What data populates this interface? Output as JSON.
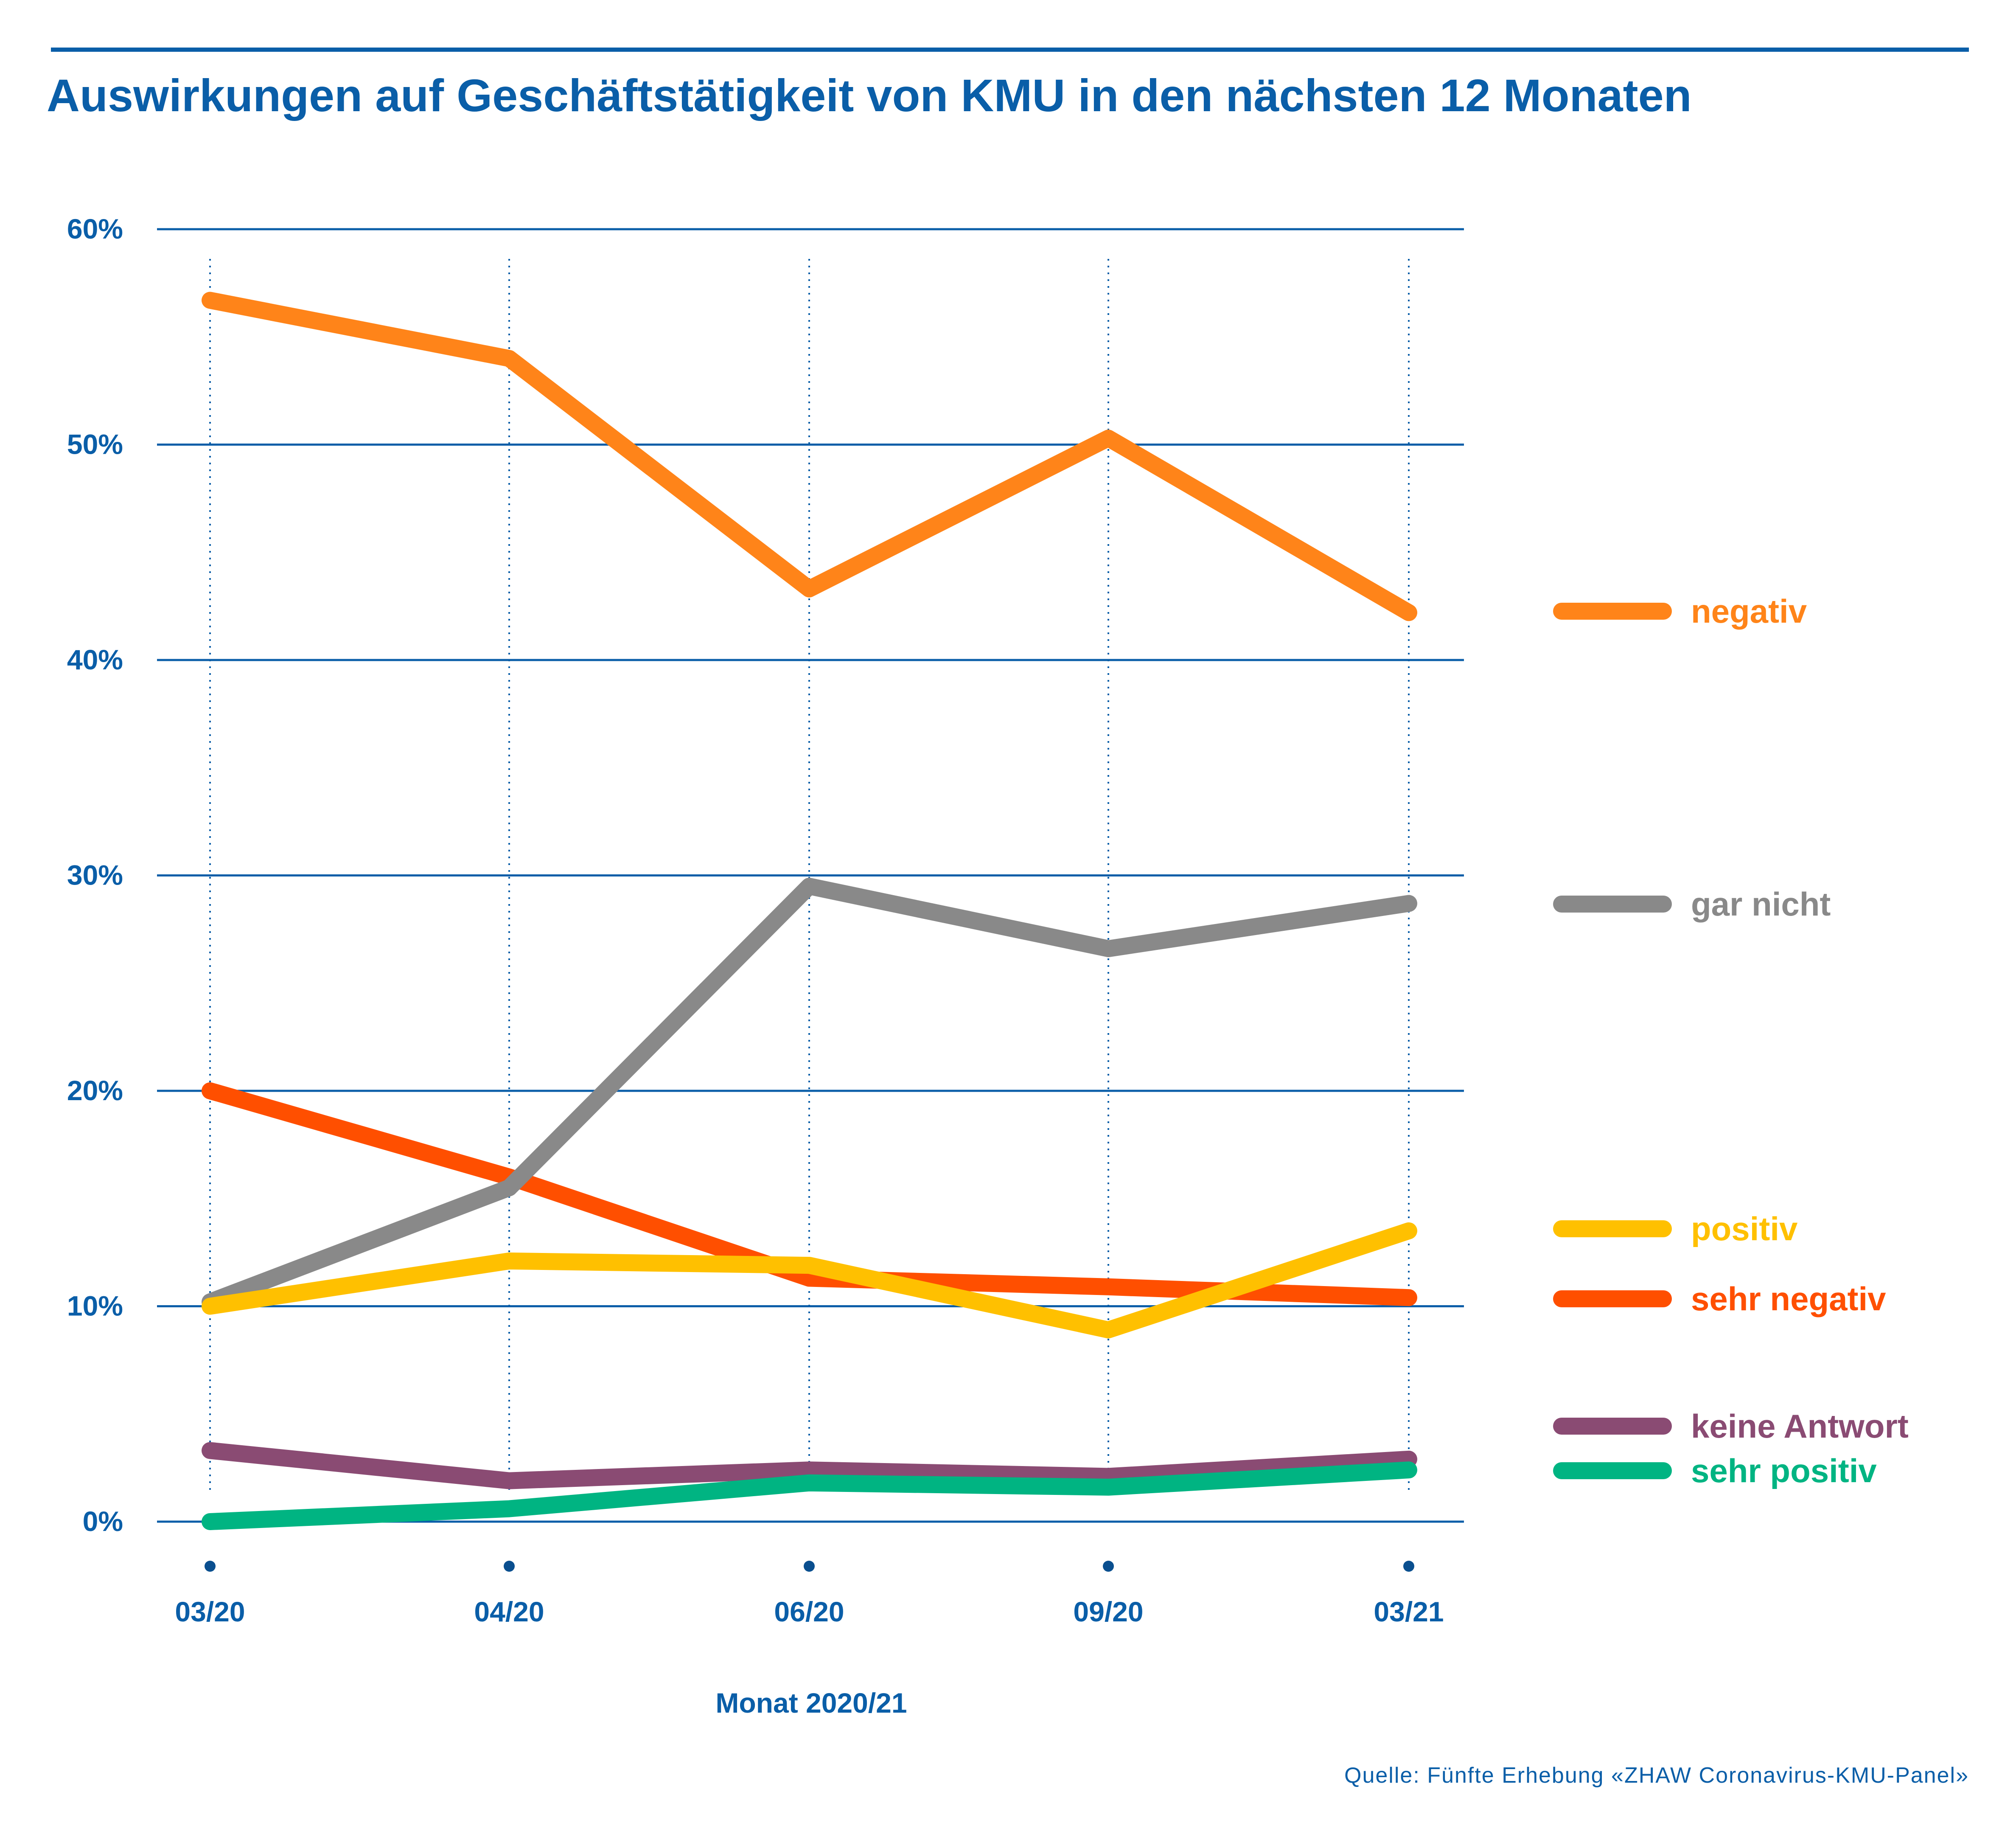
{
  "title": "Auswirkungen auf Geschäftstätigkeit von KMU in den nächsten 12 Monaten",
  "source": "Quelle: Fünfte Erhebung «ZHAW Coronavirus-KMU-Panel»",
  "colors": {
    "accent": "#0a5ea8"
  },
  "chart_data": {
    "type": "line",
    "title": "Auswirkungen auf Geschäftstätigkeit von KMU in den nächsten 12 Monaten",
    "xlabel": "Monat 2020/21",
    "ylabel": "",
    "categories": [
      "03/20",
      "04/20",
      "06/20",
      "09/20",
      "03/21"
    ],
    "y_ticks": [
      "0%",
      "10%",
      "20%",
      "30%",
      "40%",
      "50%",
      "60%"
    ],
    "ylim": [
      0,
      60
    ],
    "grid": true,
    "legend_placement": "right",
    "series": [
      {
        "name": "negativ",
        "color": "#ff8419",
        "values": [
          56.7,
          54.0,
          43.3,
          50.3,
          42.2
        ]
      },
      {
        "name": "gar nicht",
        "color": "#898989",
        "values": [
          10.2,
          15.5,
          29.5,
          26.6,
          28.7
        ]
      },
      {
        "name": "positiv",
        "color": "#ffc000",
        "values": [
          10.0,
          12.1,
          11.9,
          8.9,
          13.5
        ]
      },
      {
        "name": "sehr negativ",
        "color": "#ff4f00",
        "values": [
          20.0,
          16.0,
          11.3,
          10.9,
          10.4
        ]
      },
      {
        "name": "keine Antwort",
        "color": "#8a4b73",
        "values": [
          3.3,
          1.9,
          2.4,
          2.1,
          2.9
        ]
      },
      {
        "name": "sehr positiv",
        "color": "#00b482",
        "values": [
          0.0,
          0.6,
          1.8,
          1.6,
          2.4
        ]
      }
    ]
  }
}
